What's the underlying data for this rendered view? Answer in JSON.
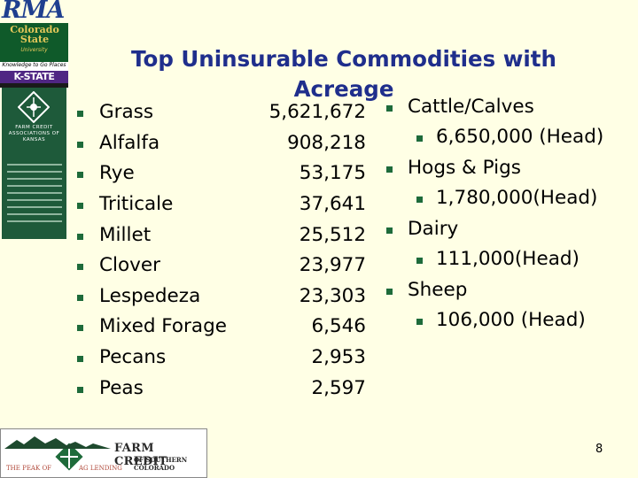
{
  "logos": {
    "rma": "RMA",
    "csu_name": "Colorado State",
    "csu_sub": "University",
    "kstate_tagline": "Knowledge to Go Places",
    "kstate": "K-STATE",
    "fcak_title": "FARM CREDIT ASSOCIATIONS OF KANSAS",
    "fcsc_name": "FARM CREDIT",
    "fcsc_sub": "OF SOUTHERN COLORADO",
    "fcsc_tag_a": "THE PEAK OF",
    "fcsc_tag_b": "AG LENDING"
  },
  "title": "Top Uninsurable Commodities with Acreage",
  "crops": [
    {
      "name": "Grass",
      "acres": "5,621,672"
    },
    {
      "name": "Alfalfa",
      "acres": "908,218"
    },
    {
      "name": "Rye",
      "acres": "53,175"
    },
    {
      "name": "Triticale",
      "acres": "37,641"
    },
    {
      "name": "Millet",
      "acres": "25,512"
    },
    {
      "name": "Clover",
      "acres": "23,977"
    },
    {
      "name": "Lespedeza",
      "acres": "23,303"
    },
    {
      "name": "Mixed Forage",
      "acres": "6,546"
    },
    {
      "name": "Pecans",
      "acres": "2,953"
    },
    {
      "name": "Peas",
      "acres": "2,597"
    }
  ],
  "livestock": [
    {
      "name": "Cattle/Calves",
      "count": "6,650,000 (Head)"
    },
    {
      "name": "Hogs & Pigs",
      "count": "1,780,000(Head)"
    },
    {
      "name": "Dairy",
      "count": "111,000(Head)"
    },
    {
      "name": "Sheep",
      "count": "106,000 (Head)"
    }
  ],
  "page_number": "8",
  "colors": {
    "background": "#FFFFE5",
    "title": "#1F2E8C",
    "bullet": "#1E6B3A"
  }
}
